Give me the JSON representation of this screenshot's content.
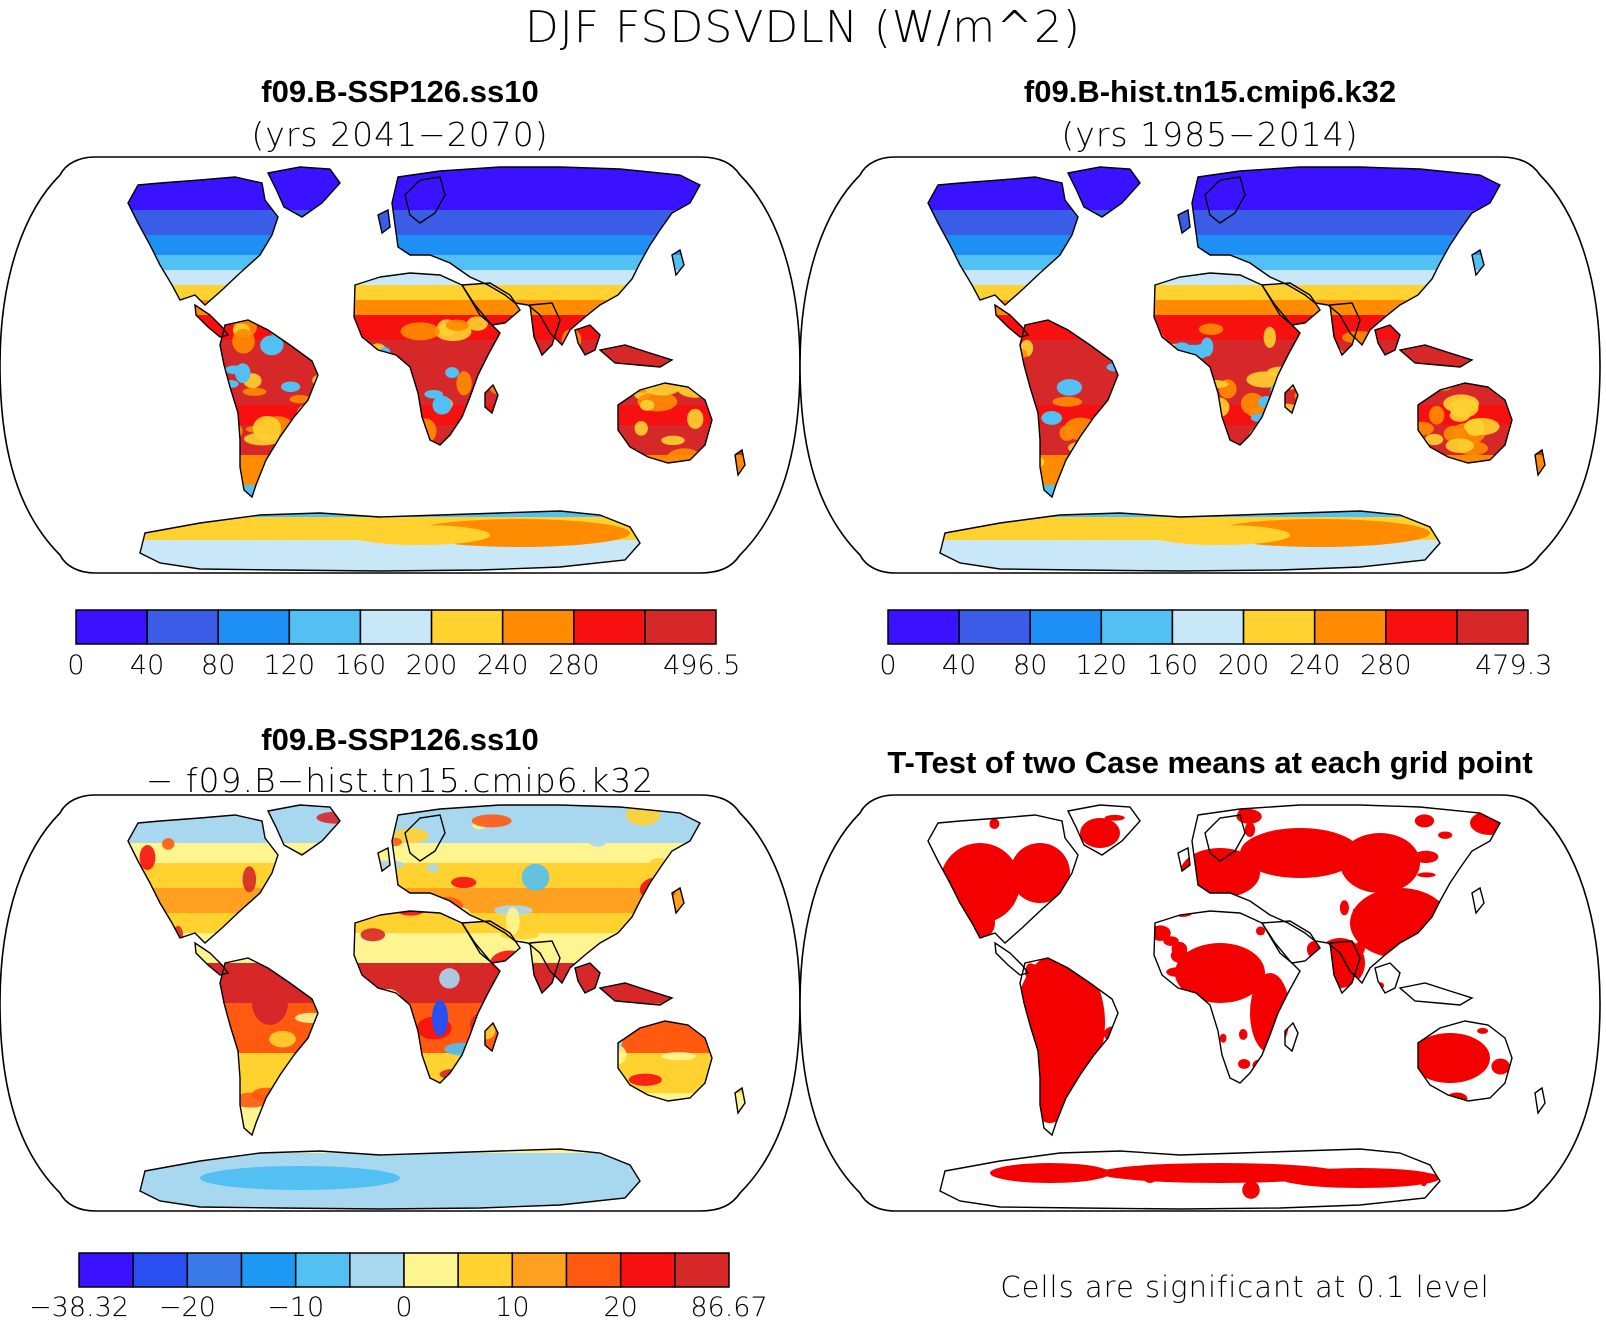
{
  "page": {
    "title": "DJF FSDSVDLN (W/m^2)"
  },
  "panels": [
    {
      "id": "panel-future",
      "title_line1": "f09.B-SSP126.ss10",
      "title_line2": "(yrs 2041−2070)",
      "colorbar": {
        "colors": [
          "#3a12ff",
          "#3a5ce6",
          "#1e90f5",
          "#52c0f2",
          "#c8e8f8",
          "#ffd230",
          "#ff8c00",
          "#f71010",
          "#d62828"
        ],
        "labels": [
          "0",
          "40",
          "80",
          "120",
          "160",
          "200",
          "240",
          "280",
          "496.5"
        ]
      }
    },
    {
      "id": "panel-historical",
      "title_line1": "f09.B-hist.tn15.cmip6.k32",
      "title_line2": "(yrs 1985−2014)",
      "colorbar": {
        "colors": [
          "#3a12ff",
          "#3a5ce6",
          "#1e90f5",
          "#52c0f2",
          "#c8e8f8",
          "#ffd230",
          "#ff8c00",
          "#f71010",
          "#d62828"
        ],
        "labels": [
          "0",
          "40",
          "80",
          "120",
          "160",
          "200",
          "240",
          "280",
          "479.3"
        ]
      }
    },
    {
      "id": "panel-difference",
      "title_line1": "f09.B-SSP126.ss10",
      "title_line2": "− f09.B−hist.tn15.cmip6.k32",
      "colorbar": {
        "colors": [
          "#3a12ff",
          "#2a4ff0",
          "#3a7ae8",
          "#1e98f5",
          "#52c0f2",
          "#a8d8f0",
          "#fff590",
          "#ffd230",
          "#ffa020",
          "#ff5a10",
          "#f71010",
          "#d62828"
        ],
        "labels": [
          "−38.32",
          "−20",
          "−10",
          "0",
          "10",
          "20",
          "86.67"
        ]
      }
    },
    {
      "id": "panel-ttest",
      "title_line1": "T-Test of two Case means at each grid point",
      "footnote": "Cells are significant at 0.1 level"
    }
  ],
  "colors": {
    "ocean": "#ffffff",
    "coast": "#000000",
    "significant": "#f40000"
  }
}
